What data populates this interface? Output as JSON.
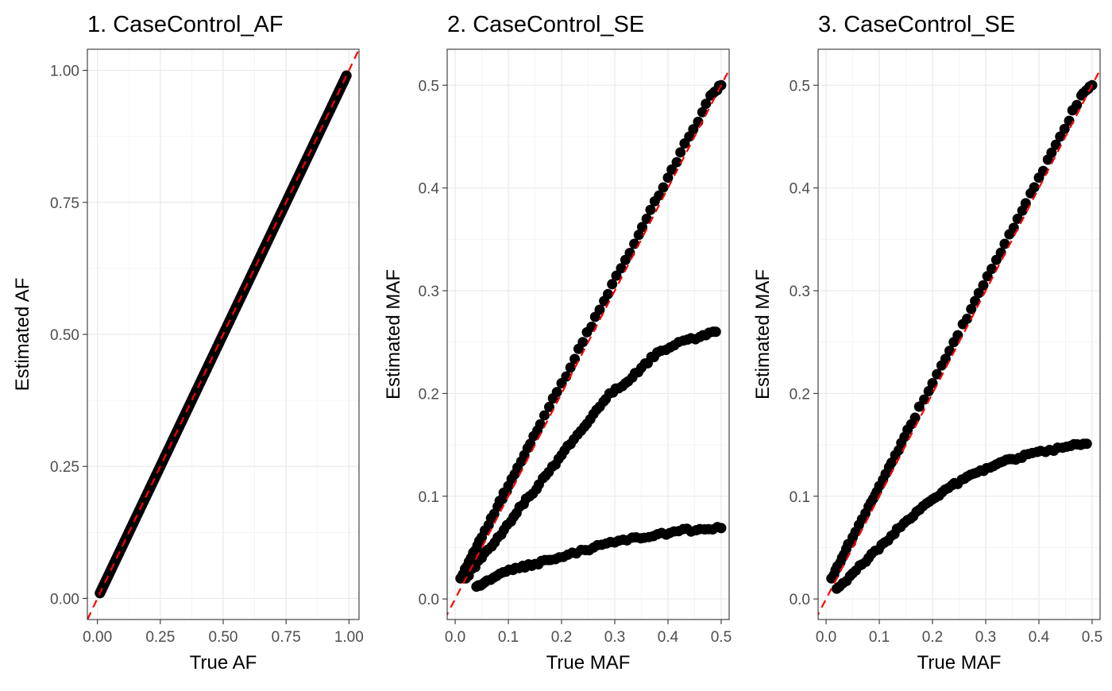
{
  "chart_data": [
    {
      "type": "scatter",
      "title": "1. CaseControl_AF",
      "xlabel": "True AF",
      "ylabel": "Estimated AF",
      "xlim": [
        -0.04,
        1.04
      ],
      "ylim": [
        -0.04,
        1.04
      ],
      "xticks": [
        0,
        0.25,
        0.5,
        0.75,
        1
      ],
      "xtick_labels": [
        "0.00",
        "0.25",
        "0.50",
        "0.75",
        "1.00"
      ],
      "yticks": [
        0,
        0.25,
        0.5,
        0.75,
        1
      ],
      "ytick_labels": [
        "0.00",
        "0.25",
        "0.50",
        "0.75",
        "1.00"
      ],
      "grid": true,
      "reference_line": {
        "type": "identity",
        "slope": 1,
        "intercept": 0,
        "style": "dashed",
        "color": "#ff0000"
      },
      "series": [
        {
          "x": [
            0.01,
            0.03,
            0.06,
            0.1,
            0.15,
            0.2,
            0.25,
            0.3,
            0.35,
            0.4,
            0.45,
            0.5,
            0.55,
            0.6,
            0.65,
            0.7,
            0.75,
            0.8,
            0.85,
            0.9,
            0.95,
            0.99
          ],
          "y": [
            0.01,
            0.03,
            0.06,
            0.1,
            0.15,
            0.2,
            0.25,
            0.3,
            0.35,
            0.4,
            0.45,
            0.5,
            0.55,
            0.6,
            0.65,
            0.7,
            0.75,
            0.8,
            0.85,
            0.9,
            0.95,
            0.99
          ]
        }
      ]
    },
    {
      "type": "scatter",
      "title": "2. CaseControl_SE",
      "xlabel": "True MAF",
      "ylabel": "Estimated MAF",
      "xlim": [
        -0.015,
        0.515
      ],
      "ylim": [
        -0.02,
        0.535
      ],
      "xticks": [
        0,
        0.1,
        0.2,
        0.3,
        0.4,
        0.5
      ],
      "xtick_labels": [
        "0.0",
        "0.1",
        "0.2",
        "0.3",
        "0.4",
        "0.5"
      ],
      "yticks": [
        0,
        0.1,
        0.2,
        0.3,
        0.4,
        0.5
      ],
      "ytick_labels": [
        "0.0",
        "0.1",
        "0.2",
        "0.3",
        "0.4",
        "0.5"
      ],
      "grid": true,
      "reference_line": {
        "type": "identity",
        "slope": 1,
        "intercept": 0,
        "style": "dashed",
        "color": "#ff0000"
      },
      "series": [
        {
          "x": [
            0.01,
            0.03,
            0.05,
            0.08,
            0.1,
            0.13,
            0.16,
            0.2,
            0.24,
            0.28,
            0.32,
            0.36,
            0.4,
            0.44,
            0.48,
            0.5
          ],
          "y": [
            0.02,
            0.04,
            0.06,
            0.09,
            0.11,
            0.14,
            0.17,
            0.21,
            0.25,
            0.29,
            0.33,
            0.37,
            0.41,
            0.45,
            0.49,
            0.5
          ]
        },
        {
          "x": [
            0.02,
            0.05,
            0.08,
            0.11,
            0.14,
            0.17,
            0.2,
            0.23,
            0.26,
            0.29,
            0.32,
            0.35,
            0.38,
            0.42,
            0.46,
            0.49
          ],
          "y": [
            0.02,
            0.04,
            0.06,
            0.08,
            0.1,
            0.12,
            0.14,
            0.16,
            0.18,
            0.2,
            0.21,
            0.225,
            0.24,
            0.25,
            0.255,
            0.26
          ]
        },
        {
          "x": [
            0.04,
            0.06,
            0.09,
            0.12,
            0.15,
            0.18,
            0.22,
            0.26,
            0.3,
            0.34,
            0.38,
            0.42,
            0.46,
            0.5
          ],
          "y": [
            0.012,
            0.018,
            0.026,
            0.03,
            0.034,
            0.038,
            0.045,
            0.05,
            0.055,
            0.06,
            0.063,
            0.066,
            0.068,
            0.069
          ]
        }
      ]
    },
    {
      "type": "scatter",
      "title": "3. CaseControl_SE",
      "xlabel": "True MAF",
      "ylabel": "Estimated MAF",
      "xlim": [
        -0.015,
        0.515
      ],
      "ylim": [
        -0.02,
        0.535
      ],
      "xticks": [
        0,
        0.1,
        0.2,
        0.3,
        0.4,
        0.5
      ],
      "xtick_labels": [
        "0.0",
        "0.1",
        "0.2",
        "0.3",
        "0.4",
        "0.5"
      ],
      "yticks": [
        0,
        0.1,
        0.2,
        0.3,
        0.4,
        0.5
      ],
      "ytick_labels": [
        "0.0",
        "0.1",
        "0.2",
        "0.3",
        "0.4",
        "0.5"
      ],
      "grid": true,
      "reference_line": {
        "type": "identity",
        "slope": 1,
        "intercept": 0,
        "style": "dashed",
        "color": "#ff0000"
      },
      "series": [
        {
          "x": [
            0.01,
            0.03,
            0.05,
            0.08,
            0.1,
            0.13,
            0.16,
            0.2,
            0.24,
            0.28,
            0.32,
            0.36,
            0.4,
            0.44,
            0.48,
            0.5
          ],
          "y": [
            0.02,
            0.04,
            0.06,
            0.09,
            0.11,
            0.14,
            0.17,
            0.21,
            0.25,
            0.29,
            0.33,
            0.37,
            0.41,
            0.45,
            0.49,
            0.5
          ]
        },
        {
          "x": [
            0.02,
            0.05,
            0.08,
            0.11,
            0.14,
            0.17,
            0.2,
            0.23,
            0.26,
            0.29,
            0.32,
            0.35,
            0.38,
            0.42,
            0.46,
            0.49
          ],
          "y": [
            0.01,
            0.025,
            0.04,
            0.055,
            0.07,
            0.085,
            0.097,
            0.108,
            0.117,
            0.125,
            0.131,
            0.136,
            0.141,
            0.145,
            0.149,
            0.151
          ]
        }
      ]
    }
  ]
}
